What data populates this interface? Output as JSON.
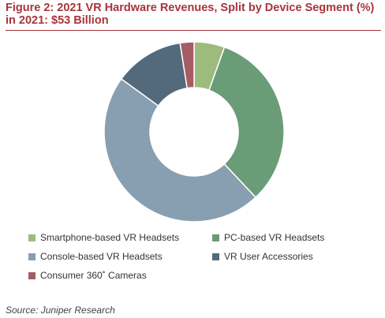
{
  "chart_data": {
    "type": "pie",
    "title": "Figure 2: 2021 VR Hardware Revenues, Split by Device Segment (%) in 2021: $53 Billion",
    "source": "Source: Juniper Research",
    "donut": true,
    "legend_position": "bottom",
    "categories": [
      "Smartphone-based VR Headsets",
      "PC-based VR Headsets",
      "Console-based VR Headsets",
      "VR User Accessories",
      "Consumer 360˚ Cameras"
    ],
    "values": [
      5.5,
      32.5,
      47.0,
      12.5,
      2.5
    ],
    "colors": [
      "#9dbb7c",
      "#6a9c78",
      "#879fb0",
      "#536a7d",
      "#a55c64"
    ]
  }
}
